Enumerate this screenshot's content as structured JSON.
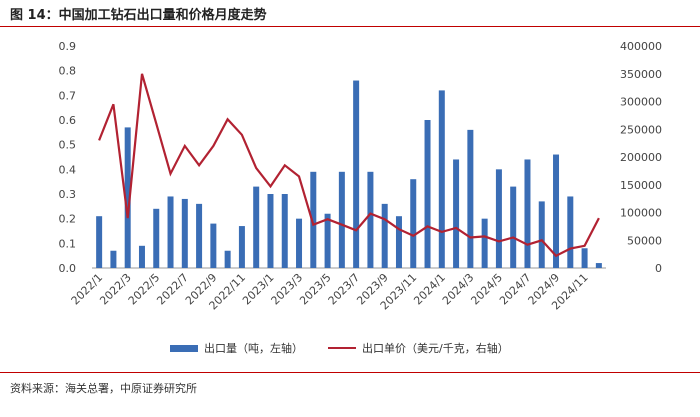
{
  "header": {
    "title": "图 14：中国加工钻石出口量和价格月度走势"
  },
  "footer": {
    "source": "资料来源：海关总署，中原证券研究所"
  },
  "colors": {
    "bar": "#3a6db5",
    "line": "#b22232",
    "accent": "#c00000"
  },
  "chart_data": {
    "type": "bar",
    "title": "",
    "months": [
      "2022/1",
      "2022/2",
      "2022/3",
      "2022/4",
      "2022/5",
      "2022/6",
      "2022/7",
      "2022/8",
      "2022/9",
      "2022/10",
      "2022/11",
      "2022/12",
      "2023/1",
      "2023/2",
      "2023/3",
      "2023/4",
      "2023/5",
      "2023/6",
      "2023/7",
      "2023/8",
      "2023/9",
      "2023/10",
      "2023/11",
      "2023/12",
      "2024/1",
      "2024/2",
      "2024/3",
      "2024/4",
      "2024/5",
      "2024/6",
      "2024/7",
      "2024/8",
      "2024/9",
      "2024/10",
      "2024/11",
      "2024/12"
    ],
    "x_tick_labels": [
      "2022/1",
      "2022/3",
      "2022/5",
      "2022/7",
      "2022/9",
      "2022/11",
      "2023/1",
      "2023/3",
      "2023/5",
      "2023/7",
      "2023/9",
      "2023/11",
      "2024/1",
      "2024/3",
      "2024/5",
      "2024/7",
      "2024/9",
      "2024/11"
    ],
    "series": [
      {
        "name": "出口量（吨，左轴）",
        "type": "bar",
        "axis": "left",
        "values": [
          0.21,
          0.07,
          0.57,
          0.09,
          0.24,
          0.29,
          0.28,
          0.26,
          0.18,
          0.07,
          0.17,
          0.33,
          0.3,
          0.3,
          0.2,
          0.39,
          0.22,
          0.39,
          0.76,
          0.39,
          0.26,
          0.21,
          0.36,
          0.6,
          0.72,
          0.44,
          0.56,
          0.2,
          0.4,
          0.33,
          0.44,
          0.27,
          0.46,
          0.29,
          0.08,
          0.02
        ]
      },
      {
        "name": "出口单价（美元/千克，右轴）",
        "type": "line",
        "axis": "right",
        "values": [
          230000,
          295000,
          90000,
          350000,
          260000,
          170000,
          220000,
          185000,
          220000,
          268000,
          240000,
          180000,
          147000,
          185000,
          165000,
          78000,
          88000,
          78000,
          68000,
          98000,
          88000,
          70000,
          58000,
          75000,
          65000,
          72000,
          55000,
          57000,
          48000,
          55000,
          42000,
          50000,
          22000,
          35000,
          40000,
          90000
        ]
      }
    ],
    "y_left": {
      "min": 0,
      "max": 0.9,
      "ticks": [
        "0.0",
        "0.1",
        "0.2",
        "0.3",
        "0.4",
        "0.5",
        "0.6",
        "0.7",
        "0.8",
        "0.9"
      ]
    },
    "y_right": {
      "min": 0,
      "max": 400000,
      "ticks": [
        "0",
        "50000",
        "100000",
        "150000",
        "200000",
        "250000",
        "300000",
        "350000",
        "400000"
      ]
    },
    "grid": false,
    "legend_position": "bottom"
  }
}
